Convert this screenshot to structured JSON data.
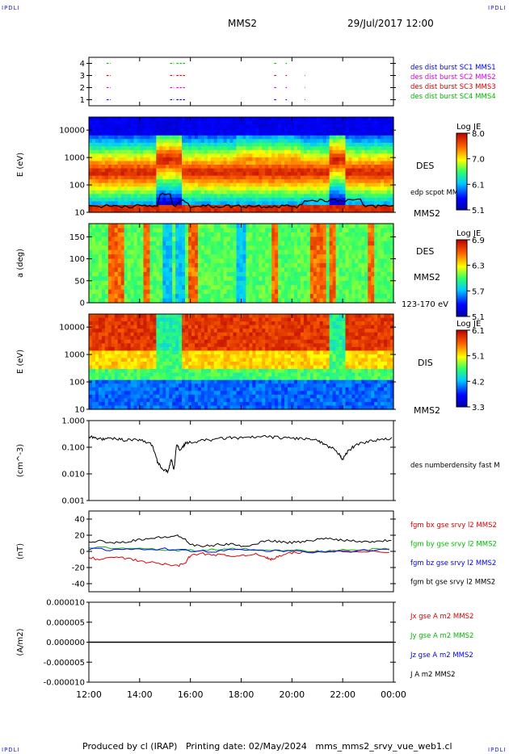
{
  "header": {
    "corner_left": "IPDLI",
    "corner_right": "IPDLI",
    "spacecraft": "MMS2",
    "date_time": "29/Jul/2017 12:00"
  },
  "footer": {
    "text": "Produced by cl (IRAP)   Printing date: 02/May/2024   mms_mms2_srvy_vue_web1.cl",
    "corner_left": "IPDLI",
    "corner_right": "IPDLI"
  },
  "colors": {
    "c1": "#0000ff",
    "c2": "#dd00dd",
    "c3": "#dd0000",
    "c4": "#00bb00",
    "bx": "#dd0000",
    "by": "#00bb00",
    "bz": "#0000ff",
    "bt": "#000000"
  },
  "chart_data": [
    {
      "type": "scatter",
      "name": "burst-availability",
      "y_ticks": [
        "1",
        "2",
        "3",
        "4"
      ],
      "ylim": [
        0.5,
        4.5
      ],
      "xlim_hours": [
        12,
        24
      ],
      "series": [
        {
          "name": "des dist burst SC1 MMS1",
          "y": 1,
          "color": "#0000ff",
          "intervals": [
            [
              12.7,
              12.85
            ],
            [
              15.2,
              15.35
            ],
            [
              15.45,
              15.8
            ],
            [
              19.3,
              19.4
            ],
            [
              19.75,
              19.8
            ],
            [
              20.5,
              20.52
            ]
          ]
        },
        {
          "name": "des dist burst SC2 MMS2",
          "y": 2,
          "color": "#dd00dd",
          "intervals": [
            [
              12.7,
              12.85
            ],
            [
              15.2,
              15.35
            ],
            [
              15.45,
              15.8
            ],
            [
              19.3,
              19.4
            ],
            [
              19.75,
              19.8
            ],
            [
              20.5,
              20.52
            ]
          ]
        },
        {
          "name": "des dist burst SC3 MMS3",
          "y": 3,
          "color": "#dd0000",
          "intervals": [
            [
              12.7,
              12.85
            ],
            [
              15.2,
              15.35
            ],
            [
              15.45,
              15.8
            ],
            [
              19.3,
              19.4
            ],
            [
              19.75,
              19.8
            ],
            [
              20.5,
              20.52
            ]
          ]
        },
        {
          "name": "des dist burst SC4 MMS4",
          "y": 4,
          "color": "#00bb00",
          "intervals": [
            [
              12.7,
              12.85
            ],
            [
              15.2,
              15.35
            ],
            [
              15.45,
              15.8
            ],
            [
              19.3,
              19.4
            ],
            [
              19.75,
              19.8
            ]
          ]
        }
      ]
    },
    {
      "type": "heatmap",
      "name": "electron-energy-spectrogram",
      "ylabel": "E (eV)",
      "y_ticks": [
        "10",
        "100",
        "1000",
        "10000"
      ],
      "ylim": [
        10,
        30000
      ],
      "log_y": true,
      "label": "DES",
      "sublabel": "MMS2",
      "overlay_label": "edp scpot MMS2",
      "colorbar": {
        "title": "Log JE",
        "ticks": [
          "8.0",
          "7.0",
          "6.1",
          "5.1"
        ],
        "range": [
          5.1,
          8.1
        ]
      }
    },
    {
      "type": "heatmap",
      "name": "electron-pitch-angle",
      "ylabel": "a (deg)",
      "y_ticks": [
        "0",
        "50",
        "100",
        "150"
      ],
      "ylim": [
        0,
        180
      ],
      "label": "DES",
      "sublabel": "MMS2",
      "energy_band": "123-170 eV",
      "colorbar": {
        "title": "Log JE",
        "ticks": [
          "6.9",
          "6.3",
          "5.7",
          "5.1"
        ],
        "range": [
          5.1,
          7.0
        ]
      }
    },
    {
      "type": "heatmap",
      "name": "ion-energy-spectrogram",
      "ylabel": "E (eV)",
      "y_ticks": [
        "10",
        "100",
        "1000",
        "10000"
      ],
      "ylim": [
        10,
        30000
      ],
      "log_y": true,
      "label": "DIS",
      "sublabel": "MMS2",
      "colorbar": {
        "title": "Log JE",
        "ticks": [
          "6.1",
          "5.1",
          "4.2",
          "3.3"
        ],
        "range": [
          3.3,
          6.3
        ]
      }
    },
    {
      "type": "line",
      "name": "density",
      "ylabel": "(cm^-3)",
      "y_ticks": [
        "0.001",
        "0.010",
        "0.100",
        "1.000"
      ],
      "ylim": [
        0.001,
        1
      ],
      "log_y": true,
      "series": [
        {
          "name": "des numberdensity fast M",
          "color": "#000000",
          "x": [
            12.0,
            12.3,
            12.6,
            13.0,
            13.4,
            13.8,
            14.2,
            14.5,
            14.7,
            14.9,
            15.1,
            15.25,
            15.35,
            15.45,
            15.6,
            15.8,
            16.0,
            16.5,
            17.0,
            17.5,
            18.0,
            18.5,
            19.0,
            19.5,
            20.0,
            20.5,
            21.0,
            21.3,
            21.6,
            21.9,
            22.0,
            22.2,
            22.5,
            23.0,
            23.5,
            24.0
          ],
          "y": [
            0.25,
            0.22,
            0.2,
            0.21,
            0.19,
            0.2,
            0.17,
            0.12,
            0.03,
            0.015,
            0.012,
            0.035,
            0.013,
            0.12,
            0.08,
            0.14,
            0.15,
            0.18,
            0.2,
            0.23,
            0.22,
            0.24,
            0.25,
            0.23,
            0.22,
            0.21,
            0.18,
            0.12,
            0.09,
            0.05,
            0.035,
            0.07,
            0.12,
            0.17,
            0.19,
            0.22
          ]
        }
      ]
    },
    {
      "type": "line",
      "name": "magnetic-field",
      "ylabel": "(nT)",
      "y_ticks": [
        "-40",
        "-20",
        "0",
        "20",
        "40"
      ],
      "ylim": [
        -50,
        50
      ],
      "series": [
        {
          "name": "fgm bx gse srvy l2 MMS2",
          "color": "#dd0000",
          "x": [
            12.0,
            12.5,
            13.0,
            13.5,
            14.0,
            14.5,
            15.0,
            15.5,
            15.8,
            16.0,
            16.5,
            17.0,
            17.5,
            18.0,
            18.5,
            19.0,
            19.2,
            19.5,
            20.0,
            20.5,
            21.0,
            22.0,
            23.0,
            24.0
          ],
          "y": [
            -8,
            -10,
            -7,
            -9,
            -12,
            -14,
            -16,
            -18,
            -14,
            -5,
            -3,
            -4,
            -6,
            -5,
            -3,
            -8,
            -10,
            -6,
            -2,
            -1,
            0,
            1,
            0,
            -1
          ]
        },
        {
          "name": "fgm by gse srvy l2 MMS2",
          "color": "#00bb00",
          "x": [
            12.0,
            13.0,
            14.0,
            15.0,
            16.0,
            17.0,
            18.0,
            19.0,
            20.0,
            21.0,
            22.0,
            23.0,
            24.0
          ],
          "y": [
            5,
            4,
            3,
            2,
            1,
            2,
            3,
            2,
            1,
            0,
            1,
            2,
            3
          ]
        },
        {
          "name": "fgm bz gse srvy l2 MMS2",
          "color": "#0000ff",
          "x": [
            12.0,
            13.0,
            14.0,
            15.0,
            16.0,
            17.0,
            18.0,
            19.0,
            20.0,
            21.0,
            22.0,
            23.0,
            24.0
          ],
          "y": [
            3,
            2,
            2,
            3,
            1,
            0,
            2,
            1,
            0,
            -1,
            0,
            1,
            2
          ]
        },
        {
          "name": "fgm bt gse srvy l2 MMS2",
          "color": "#000000",
          "x": [
            12.0,
            12.5,
            13.0,
            13.5,
            14.0,
            14.5,
            15.0,
            15.5,
            15.8,
            16.0,
            16.5,
            17.0,
            17.5,
            18.0,
            18.5,
            19.0,
            19.5,
            20.0,
            20.5,
            21.0,
            21.5,
            22.0,
            22.5,
            23.0,
            23.5,
            24.0
          ],
          "y": [
            12,
            13,
            11,
            12,
            15,
            16,
            18,
            19,
            15,
            8,
            6,
            8,
            9,
            7,
            8,
            14,
            12,
            11,
            12,
            15,
            16,
            14,
            13,
            12,
            13,
            14
          ]
        }
      ]
    },
    {
      "type": "line",
      "name": "current-density",
      "ylabel": "(A/m2)",
      "y_ticks": [
        "-0.000010",
        "-0.000005",
        "0.000000",
        "0.000005",
        "0.000010"
      ],
      "ylim": [
        -1e-05,
        1e-05
      ],
      "series": [
        {
          "name": "Jx gse A m2 MMS2",
          "color": "#dd0000"
        },
        {
          "name": "Jy gse A m2 MMS2",
          "color": "#00bb00"
        },
        {
          "name": "Jz gse A m2 MMS2",
          "color": "#0000ff"
        },
        {
          "name": "J A m2 MMS2",
          "color": "#000000"
        }
      ]
    }
  ],
  "x_axis": {
    "ticks": [
      "12:00",
      "14:00",
      "16:00",
      "18:00",
      "20:00",
      "22:00",
      "00:00"
    ],
    "hours": [
      12,
      14,
      16,
      18,
      20,
      22,
      24
    ]
  }
}
